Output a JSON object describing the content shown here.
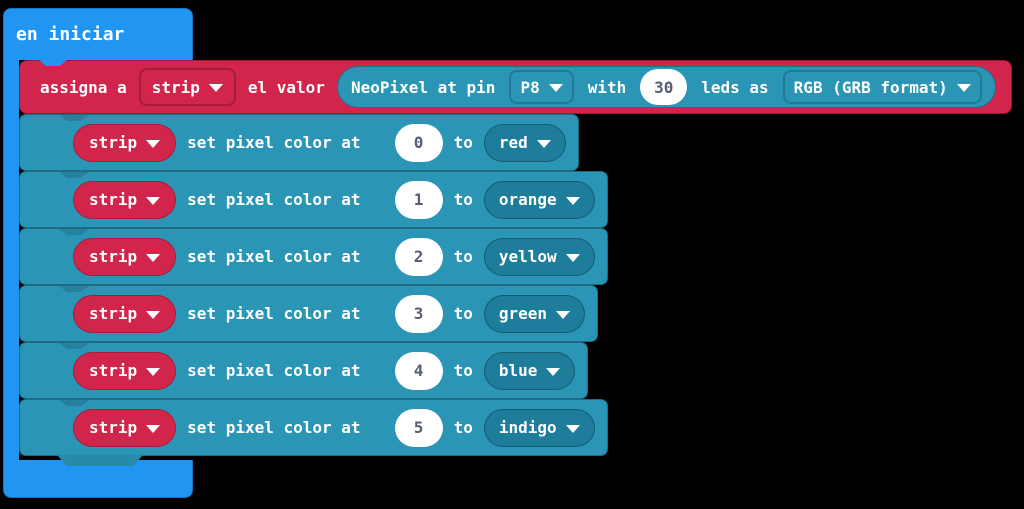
{
  "colors": {
    "background": "#000000",
    "on_start_blue": "#2095f2",
    "variable_red": "#d2254c",
    "neopixel_teal": "#2b95b6",
    "dropdown_teal_dark": "#1e7d9a",
    "number_text": "#575e75"
  },
  "on_start_block": {
    "label": "en iniciar"
  },
  "assign_block": {
    "prefix": "assigna a",
    "variable": "strip",
    "suffix": "el valor",
    "neopixel_block": {
      "label_pin": "NeoPixel at pin",
      "pin": "P8",
      "label_with": "with",
      "led_count": "30",
      "label_leds_as": "leds as",
      "format": "RGB (GRB format)"
    }
  },
  "set_pixel_blocks": [
    {
      "variable": "strip",
      "label": "set pixel color at",
      "index": "0",
      "to_label": "to",
      "color": "red"
    },
    {
      "variable": "strip",
      "label": "set pixel color at",
      "index": "1",
      "to_label": "to",
      "color": "orange"
    },
    {
      "variable": "strip",
      "label": "set pixel color at",
      "index": "2",
      "to_label": "to",
      "color": "yellow"
    },
    {
      "variable": "strip",
      "label": "set pixel color at",
      "index": "3",
      "to_label": "to",
      "color": "green"
    },
    {
      "variable": "strip",
      "label": "set pixel color at",
      "index": "4",
      "to_label": "to",
      "color": "blue"
    },
    {
      "variable": "strip",
      "label": "set pixel color at",
      "index": "5",
      "to_label": "to",
      "color": "indigo"
    }
  ]
}
